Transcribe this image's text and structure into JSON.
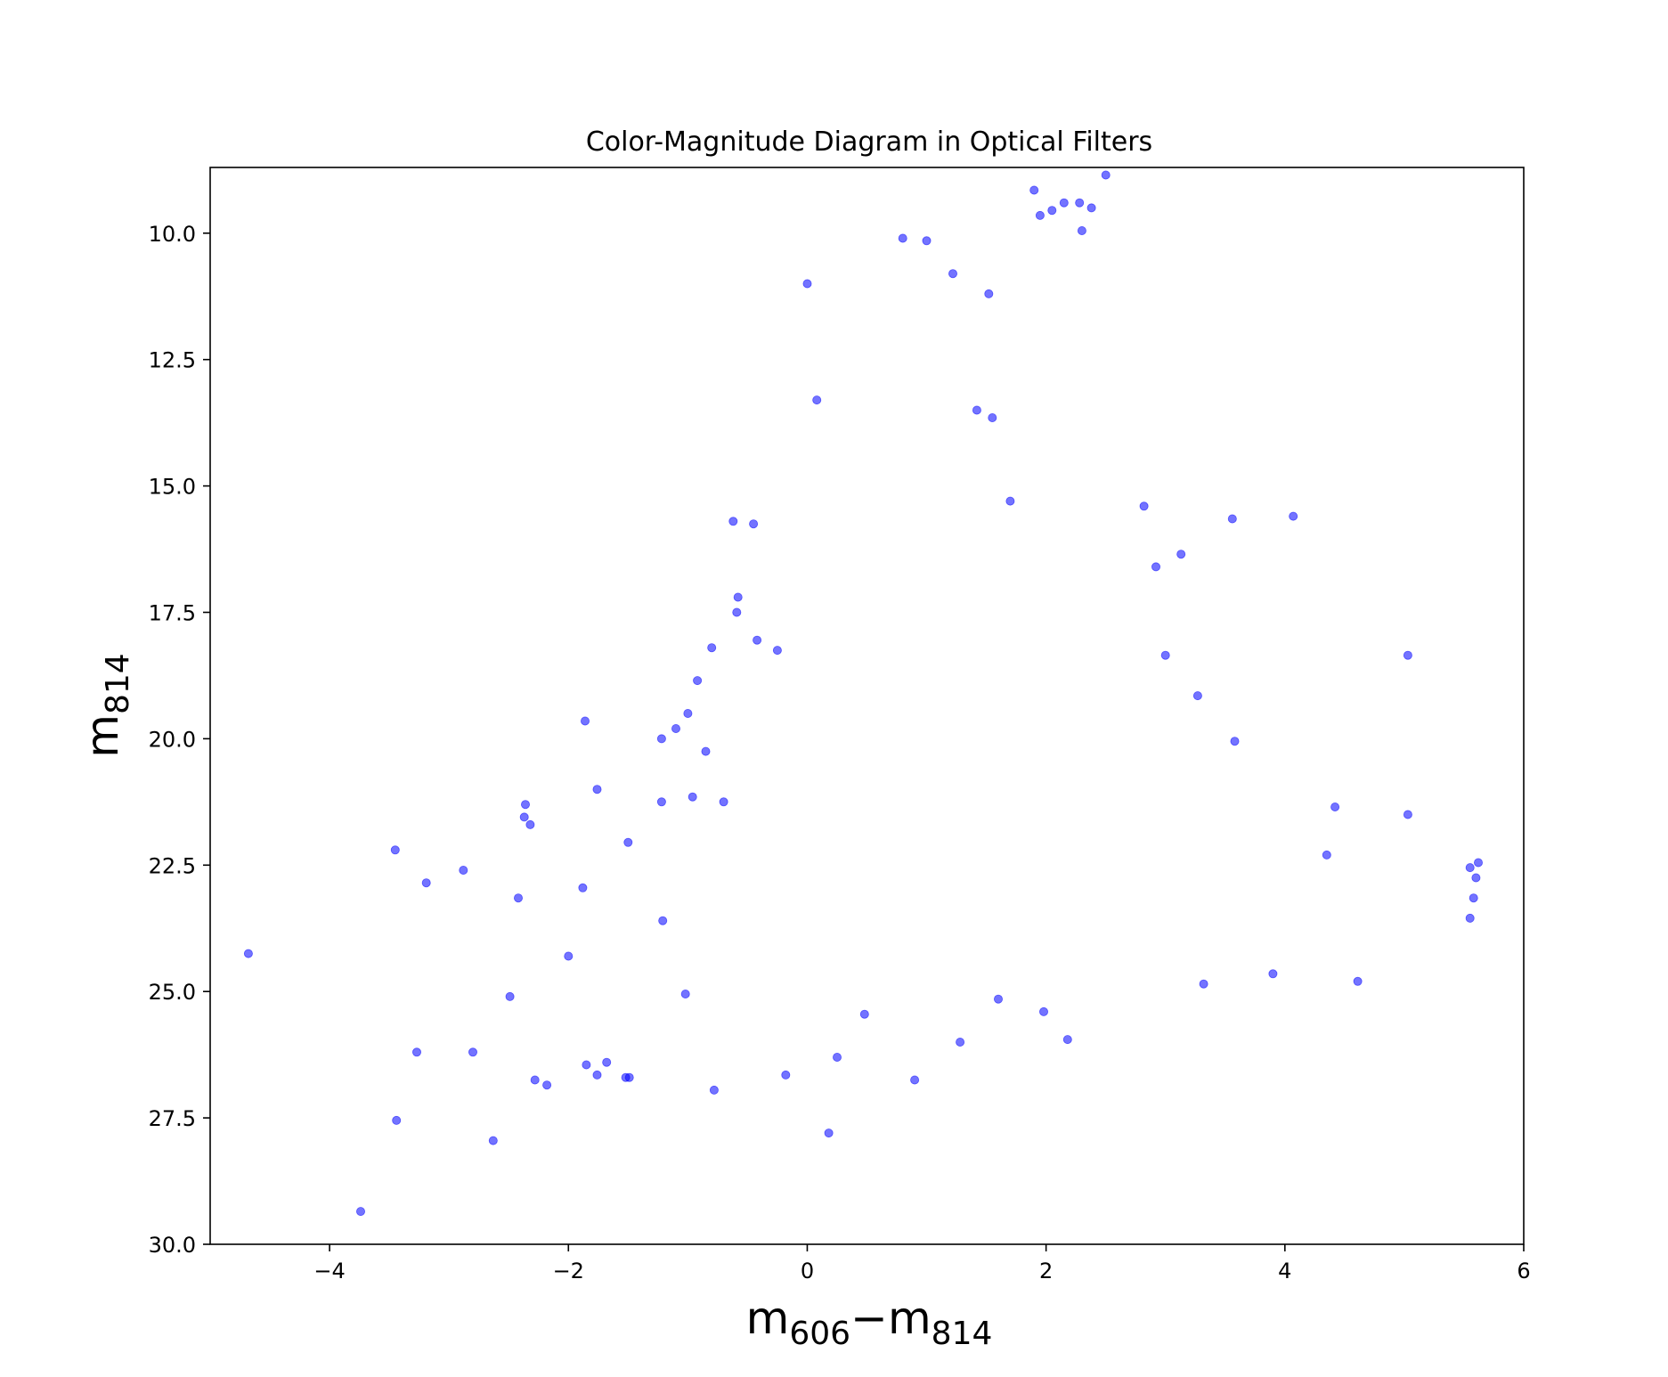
{
  "chart_data": {
    "type": "scatter",
    "title": "Color-Magnitude Diagram in Optical Filters",
    "xlabel": {
      "main1": "m",
      "sub1": "606",
      "minus": "−",
      "main2": "m",
      "sub2": "814"
    },
    "ylabel": {
      "main": "m",
      "sub": "814"
    },
    "xlim": [
      -5,
      6
    ],
    "ylim": [
      30,
      8.7
    ],
    "y_inverted": true,
    "xticks": [
      -4,
      -2,
      0,
      2,
      4,
      6
    ],
    "xtick_labels": [
      "−4",
      "−2",
      "0",
      "2",
      "4",
      "6"
    ],
    "yticks": [
      10.0,
      12.5,
      15.0,
      17.5,
      20.0,
      22.5,
      25.0,
      27.5,
      30.0
    ],
    "ytick_labels": [
      "10.0",
      "12.5",
      "15.0",
      "17.5",
      "20.0",
      "22.5",
      "25.0",
      "27.5",
      "30.0"
    ],
    "grid": false,
    "legend": "none",
    "marker_color": "#0000ff",
    "marker_alpha": 0.55,
    "series": [
      {
        "points": [
          [
            -4.68,
            24.25
          ],
          [
            -3.74,
            29.35
          ],
          [
            -3.45,
            22.2
          ],
          [
            -3.44,
            27.55
          ],
          [
            -3.27,
            26.2
          ],
          [
            -3.19,
            22.85
          ],
          [
            -2.88,
            22.6
          ],
          [
            -2.8,
            26.2
          ],
          [
            -2.63,
            27.95
          ],
          [
            -2.49,
            25.1
          ],
          [
            -2.42,
            23.15
          ],
          [
            -2.36,
            21.3
          ],
          [
            -2.37,
            21.55
          ],
          [
            -2.32,
            21.7
          ],
          [
            -2.28,
            26.75
          ],
          [
            -2.18,
            26.85
          ],
          [
            -2.0,
            24.3
          ],
          [
            -1.88,
            22.95
          ],
          [
            -1.86,
            19.65
          ],
          [
            -1.85,
            26.45
          ],
          [
            -1.76,
            21.0
          ],
          [
            -1.76,
            26.65
          ],
          [
            -1.68,
            26.4
          ],
          [
            -1.52,
            26.7
          ],
          [
            -1.49,
            26.7
          ],
          [
            -1.5,
            22.05
          ],
          [
            -1.22,
            20.0
          ],
          [
            -1.22,
            21.25
          ],
          [
            -1.21,
            23.6
          ],
          [
            -1.1,
            19.8
          ],
          [
            -1.0,
            19.5
          ],
          [
            -1.02,
            25.05
          ],
          [
            -0.96,
            21.15
          ],
          [
            -0.92,
            18.85
          ],
          [
            -0.85,
            20.25
          ],
          [
            -0.78,
            26.95
          ],
          [
            -0.8,
            18.2
          ],
          [
            -0.7,
            21.25
          ],
          [
            -0.62,
            15.7
          ],
          [
            -0.58,
            17.2
          ],
          [
            -0.59,
            17.5
          ],
          [
            -0.45,
            15.75
          ],
          [
            -0.42,
            18.05
          ],
          [
            -0.25,
            18.25
          ],
          [
            -0.18,
            26.65
          ],
          [
            0.18,
            27.8
          ],
          [
            0.0,
            11.0
          ],
          [
            0.08,
            13.3
          ],
          [
            0.25,
            26.3
          ],
          [
            0.48,
            25.45
          ],
          [
            0.9,
            26.75
          ],
          [
            1.28,
            26.0
          ],
          [
            1.6,
            25.15
          ],
          [
            1.98,
            25.4
          ],
          [
            2.18,
            25.95
          ],
          [
            0.8,
            10.1
          ],
          [
            1.0,
            10.15
          ],
          [
            1.22,
            10.8
          ],
          [
            1.52,
            11.2
          ],
          [
            1.42,
            13.5
          ],
          [
            1.55,
            13.65
          ],
          [
            1.7,
            15.3
          ],
          [
            2.5,
            8.85
          ],
          [
            2.38,
            9.5
          ],
          [
            2.28,
            9.4
          ],
          [
            2.15,
            9.4
          ],
          [
            2.05,
            9.55
          ],
          [
            1.95,
            9.65
          ],
          [
            1.9,
            9.15
          ],
          [
            2.3,
            9.95
          ],
          [
            3.56,
            15.65
          ],
          [
            4.07,
            15.6
          ],
          [
            5.03,
            18.35
          ],
          [
            5.03,
            21.5
          ],
          [
            5.55,
            22.55
          ],
          [
            5.62,
            22.45
          ],
          [
            5.6,
            22.75
          ],
          [
            5.58,
            23.15
          ],
          [
            5.55,
            23.55
          ],
          [
            4.61,
            24.8
          ],
          [
            3.9,
            24.65
          ],
          [
            3.32,
            24.85
          ],
          [
            3.13,
            16.35
          ],
          [
            2.92,
            16.6
          ],
          [
            2.82,
            15.4
          ],
          [
            3.27,
            19.15
          ],
          [
            3.0,
            18.35
          ],
          [
            3.58,
            20.05
          ],
          [
            4.42,
            21.35
          ],
          [
            4.35,
            22.3
          ]
        ]
      }
    ]
  }
}
